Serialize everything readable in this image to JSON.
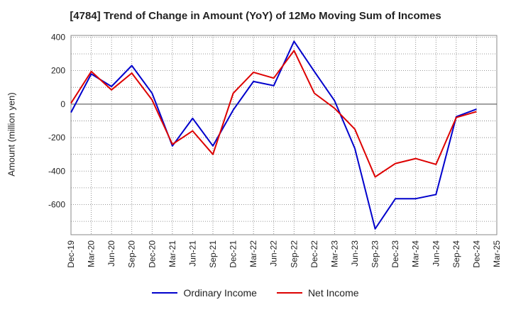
{
  "chart_data": {
    "type": "line",
    "title": "[4784]  Trend of Change in Amount (YoY) of 12Mo Moving Sum of Incomes",
    "xlabel": "",
    "ylabel": "Amount (million yen)",
    "ylim": [
      -780,
      410
    ],
    "yticks": [
      400,
      200,
      0,
      -200,
      -400,
      -600
    ],
    "grid": true,
    "legend_position": "bottom",
    "categories": [
      "Dec-19",
      "Mar-20",
      "Jun-20",
      "Sep-20",
      "Dec-20",
      "Mar-21",
      "Jun-21",
      "Sep-21",
      "Dec-21",
      "Mar-22",
      "Jun-22",
      "Sep-22",
      "Dec-22",
      "Mar-23",
      "Jun-23",
      "Sep-23",
      "Dec-23",
      "Mar-24",
      "Jun-24",
      "Sep-24",
      "Dec-24",
      "Mar-25"
    ],
    "series": [
      {
        "name": "Ordinary Income",
        "color": "#0000cc",
        "values": [
          -50,
          180,
          105,
          230,
          65,
          -250,
          -85,
          -250,
          -35,
          135,
          110,
          375,
          195,
          20,
          -265,
          -745,
          -565,
          -565,
          -540,
          -75,
          -30,
          null
        ]
      },
      {
        "name": "Net Income",
        "color": "#dd0000",
        "values": [
          5,
          195,
          85,
          185,
          25,
          -240,
          -160,
          -300,
          65,
          190,
          155,
          320,
          65,
          -25,
          -150,
          -435,
          -355,
          -325,
          -360,
          -80,
          -45,
          null
        ]
      }
    ]
  }
}
